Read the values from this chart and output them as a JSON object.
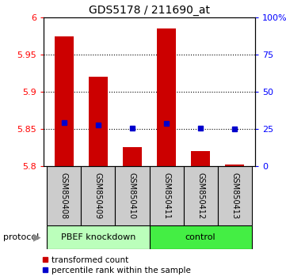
{
  "title": "GDS5178 / 211690_at",
  "samples": [
    "GSM850408",
    "GSM850409",
    "GSM850410",
    "GSM850411",
    "GSM850412",
    "GSM850413"
  ],
  "bar_values": [
    5.975,
    5.92,
    5.825,
    5.985,
    5.82,
    5.802
  ],
  "dot_values": [
    5.858,
    5.855,
    5.851,
    5.857,
    5.851,
    5.85
  ],
  "bar_bottom": 5.8,
  "ylim": [
    5.8,
    6.0
  ],
  "yticks_left": [
    5.8,
    5.85,
    5.9,
    5.95,
    6.0
  ],
  "yticks_right": [
    0,
    25,
    50,
    75,
    100
  ],
  "ytick_labels_left": [
    "5.8",
    "5.85",
    "5.9",
    "5.95",
    "6"
  ],
  "ytick_labels_right": [
    "0",
    "25",
    "50",
    "75",
    "100%"
  ],
  "bar_color": "#cc0000",
  "dot_color": "#0000cc",
  "group1_label": "PBEF knockdown",
  "group2_label": "control",
  "group1_color": "#bbffbb",
  "group2_color": "#44ee44",
  "protocol_label": "protocol",
  "legend1": "transformed count",
  "legend2": "percentile rank within the sample",
  "sample_area_color": "#cccccc",
  "grid_yticks": [
    5.85,
    5.9,
    5.95
  ]
}
